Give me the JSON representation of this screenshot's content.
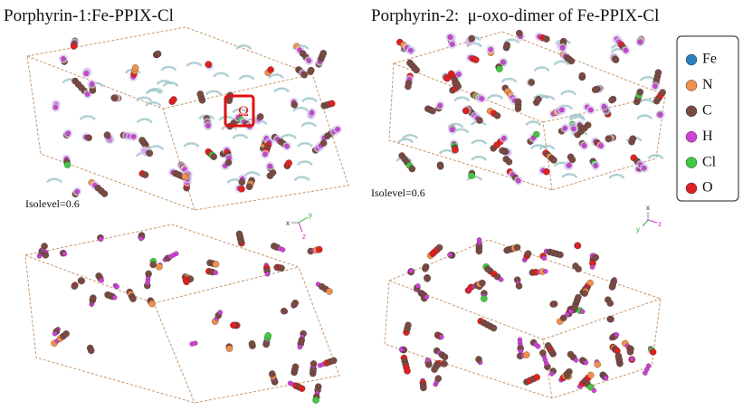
{
  "panels": [
    {
      "title": "Porphyrin-1:Fe-PPIX-Cl",
      "isolevel": "Isolevel=0.6",
      "highlight": "Ω",
      "axes": [
        "x",
        "y",
        "z"
      ]
    },
    {
      "title": "Porphyrin-2:  μ-oxo-dimer of Fe-PPIX-Cl",
      "isolevel": "Isolevel=0.6",
      "axes": [
        "x",
        "y",
        "z"
      ]
    }
  ],
  "legend": [
    {
      "label": "Fe",
      "color": "#2a7fc0"
    },
    {
      "label": "N",
      "color": "#f0904a"
    },
    {
      "label": "C",
      "color": "#7a4a42"
    },
    {
      "label": "H",
      "color": "#d040d8"
    },
    {
      "label": "Cl",
      "color": "#40c840"
    },
    {
      "label": "O",
      "color": "#e02020"
    }
  ]
}
